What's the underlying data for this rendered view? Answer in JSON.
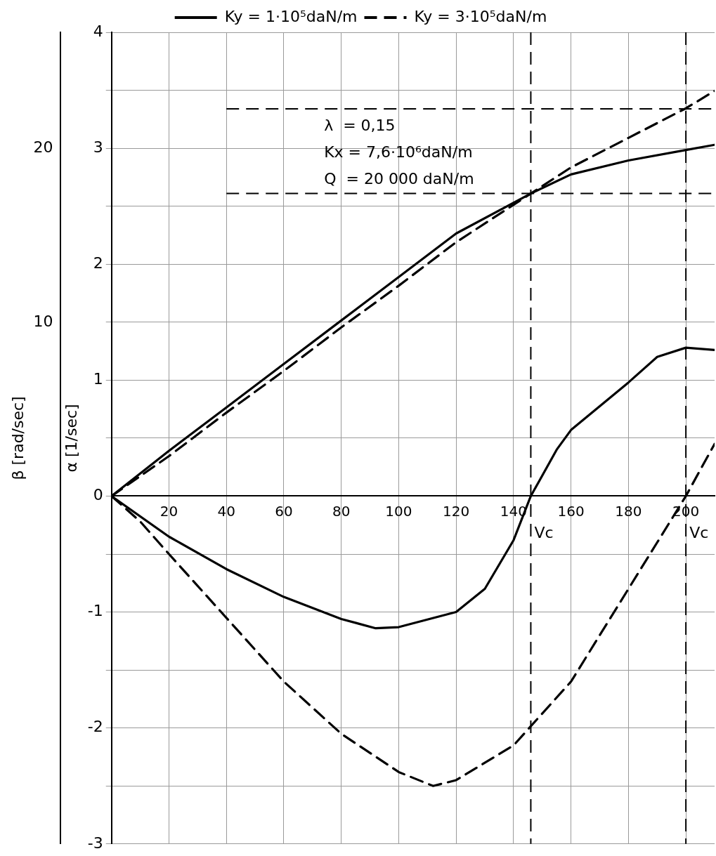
{
  "chart_data": {
    "type": "line",
    "ylabel": "α [1/sec]",
    "y2label": "β [rad/sec]",
    "xlim": [
      0,
      210
    ],
    "xticks": [
      20,
      40,
      60,
      80,
      100,
      120,
      140,
      160,
      180,
      200
    ],
    "ylim": [
      -3,
      4
    ],
    "yticks": [
      -3,
      {
        "value": -2.5,
        "label": null
      },
      -2,
      {
        "value": -1.5,
        "label": null
      },
      -1,
      {
        "value": -0.5,
        "label": null
      },
      0,
      {
        "value": 0.5,
        "label": null
      },
      1,
      {
        "value": 1.5,
        "label": null
      },
      2,
      {
        "value": 2.5,
        "label": null
      },
      3,
      {
        "value": 3.5,
        "label": null
      },
      4
    ],
    "y2lim": [
      -20,
      26.67
    ],
    "y2ticks": [
      10,
      20
    ],
    "grid": true,
    "legend": "top",
    "marker": "none",
    "series": [
      {
        "name": "Ky = 1·10⁵daN/m",
        "color": "#000000",
        "line_style": "solid",
        "axis": "y2",
        "x": [
          0,
          20,
          40,
          60,
          80,
          100,
          120,
          146,
          160,
          180,
          200,
          210
        ],
        "values": [
          0,
          2.6,
          5.1,
          7.6,
          10.1,
          12.6,
          15.1,
          17.4,
          18.5,
          19.3,
          19.9,
          20.2
        ]
      },
      {
        "name": "Ky = 3·10⁵daN/m",
        "color": "#000000",
        "line_style": "dashed",
        "axis": "y2",
        "x": [
          0,
          20,
          40,
          60,
          80,
          100,
          120,
          146,
          160,
          180,
          200,
          210
        ],
        "values": [
          0,
          2.3,
          4.8,
          7.2,
          9.7,
          12.1,
          14.6,
          17.4,
          18.9,
          20.6,
          22.3,
          23.3
        ]
      },
      {
        "color": "#000000",
        "line_style": "solid",
        "x": [
          0,
          20,
          40,
          60,
          80,
          92,
          100,
          120,
          130,
          140,
          146,
          155,
          160,
          180,
          190,
          200,
          210
        ],
        "values": [
          0,
          -0.35,
          -0.63,
          -0.87,
          -1.06,
          -1.14,
          -1.13,
          -1.0,
          -0.8,
          -0.38,
          0,
          0.4,
          0.57,
          0.98,
          1.2,
          1.28,
          1.26
        ]
      },
      {
        "color": "#000000",
        "line_style": "dashed",
        "x": [
          0,
          10,
          20,
          40,
          60,
          80,
          100,
          112,
          120,
          140,
          160,
          180,
          190,
          200,
          210
        ],
        "values": [
          0,
          -0.22,
          -0.5,
          -1.05,
          -1.6,
          -2.05,
          -2.38,
          -2.5,
          -2.45,
          -2.15,
          -1.6,
          -0.8,
          -0.4,
          0,
          0.45
        ]
      }
    ],
    "ref_lines": [
      {
        "axis": "x",
        "value": 146,
        "line_style": "dashed",
        "color": "#000000"
      },
      {
        "axis": "x",
        "value": 200,
        "line_style": "dashed",
        "color": "#000000"
      },
      {
        "axis": "y",
        "value": 2.61,
        "line_style": "dashed",
        "color": "#000000"
      },
      {
        "axis": "y",
        "value": 3.34,
        "line_style": "dashed",
        "color": "#000000"
      }
    ],
    "annotations": [
      "λ  = 0,15",
      "Kx = 7,6·10⁶daN/m",
      "Q  = 20 000 daN/m",
      {
        "text": "Vc",
        "x": 146,
        "y": 0
      },
      {
        "text": "Vc",
        "x": 200,
        "y": 0
      }
    ]
  }
}
